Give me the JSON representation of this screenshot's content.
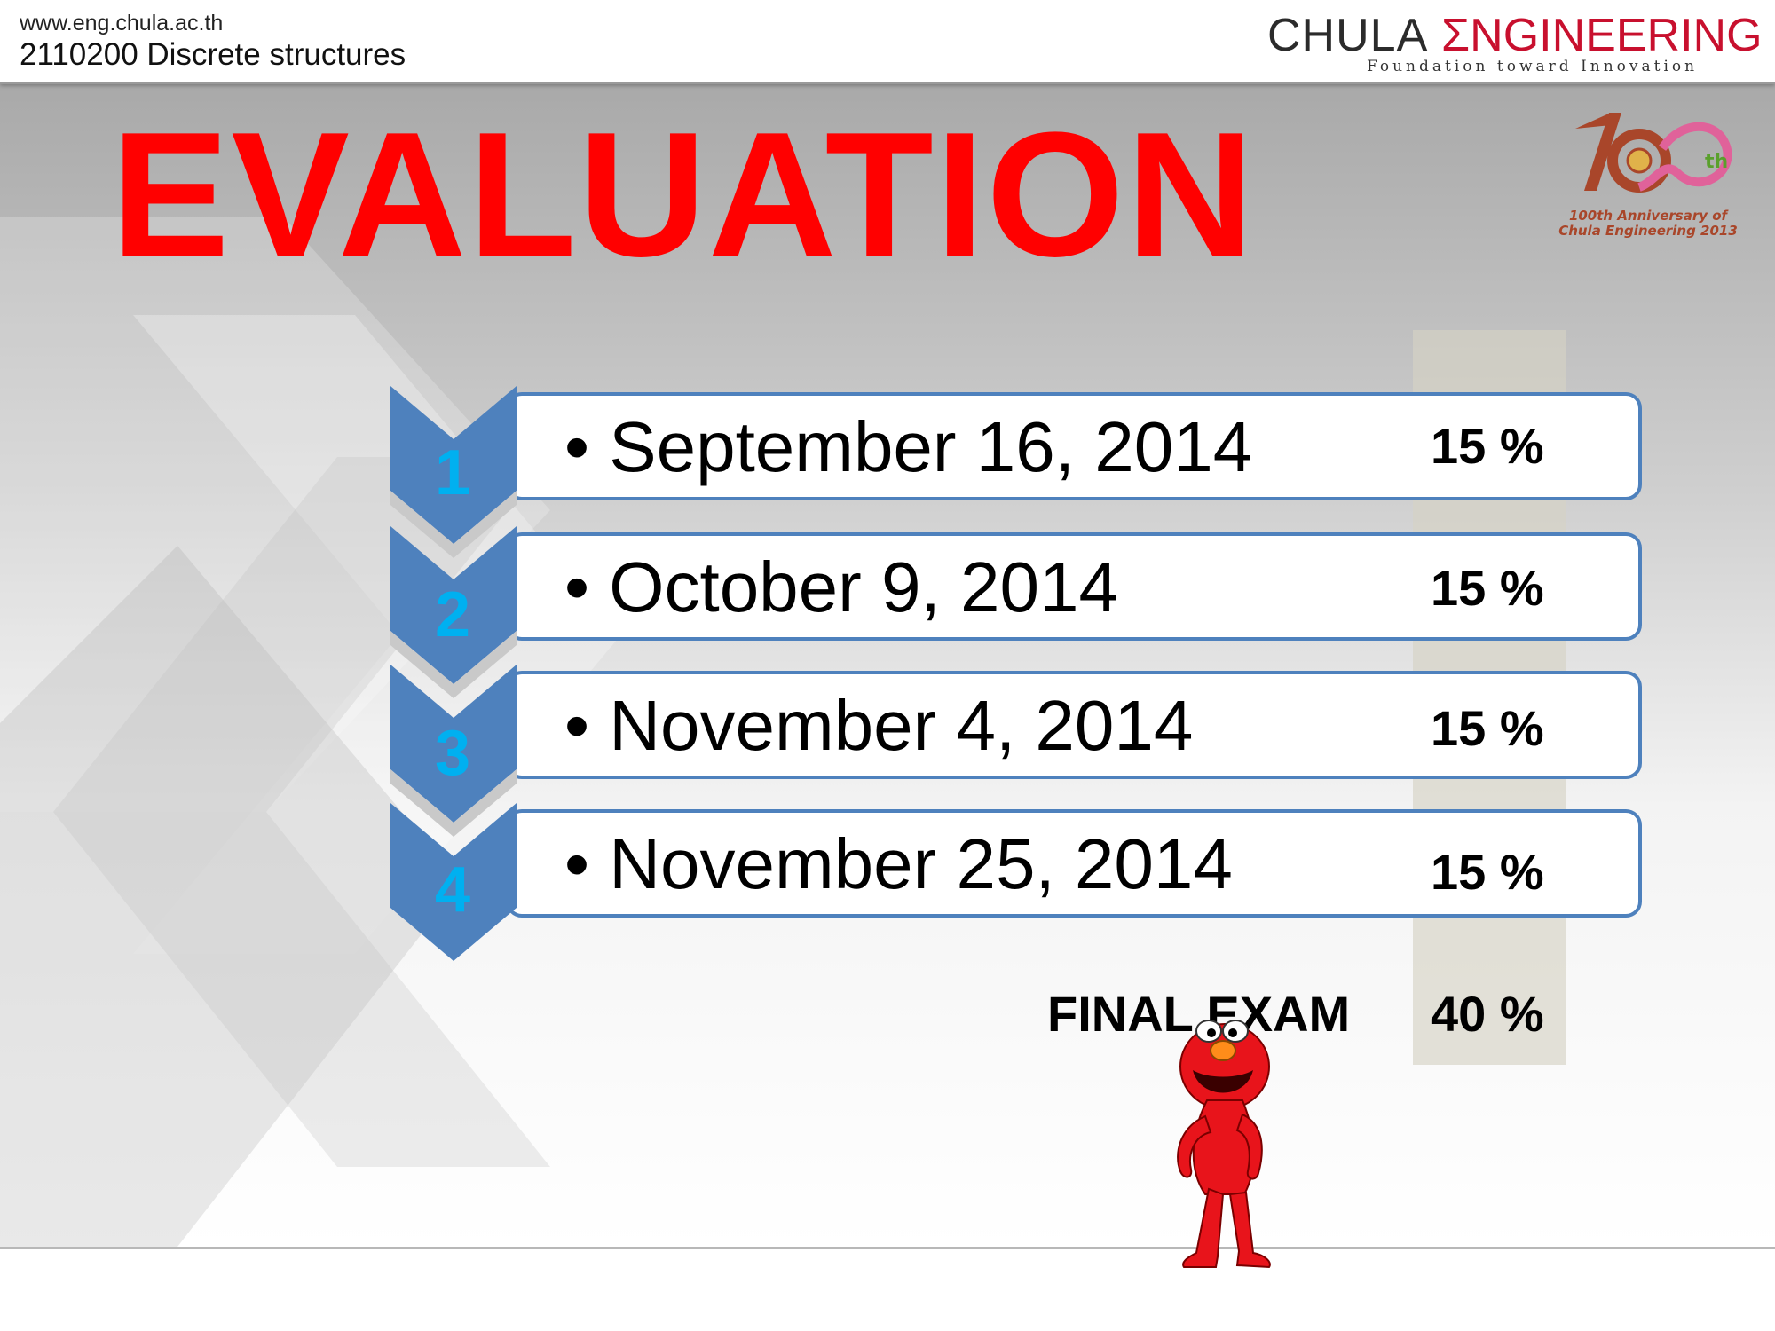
{
  "header": {
    "url": "www.eng.chula.ac.th",
    "course": "2110200 Discrete structures",
    "brand_chula": "CHULA",
    "brand_engineering": "ƩNGINEERING",
    "brand_tagline": "Foundation toward Innovation"
  },
  "anniversary": {
    "mark": "th",
    "caption_line1": "100th Anniversary of",
    "caption_line2": "Chula Engineering 2013"
  },
  "title": "EVALUATION",
  "steps": [
    {
      "number": "1",
      "date": "September 16, 2014",
      "weight": "15 %"
    },
    {
      "number": "2",
      "date": "October 9, 2014",
      "weight": "15 %"
    },
    {
      "number": "3",
      "date": "November 4, 2014",
      "weight": "15 %"
    },
    {
      "number": "4",
      "date": "November 25, 2014",
      "weight": "15 %"
    }
  ],
  "final": {
    "label": "FINAL EXAM",
    "weight": "40 %"
  },
  "colors": {
    "title": "#ff0000",
    "chevron": "#4e81bd",
    "step_number": "#00b0f0",
    "brand_accent": "#c8102e",
    "mascot": "#e8141b"
  }
}
